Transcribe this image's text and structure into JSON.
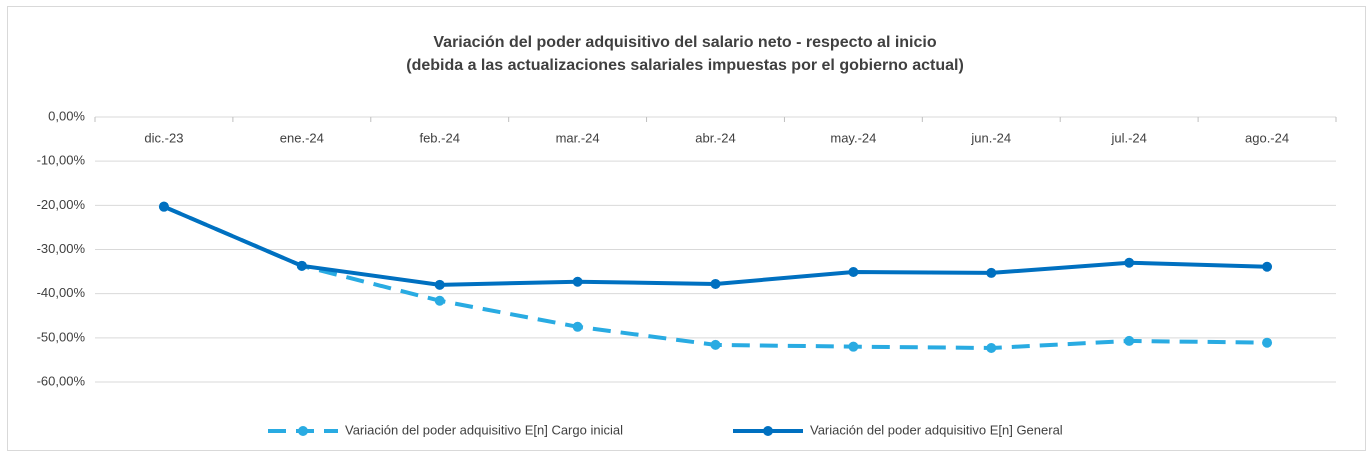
{
  "chart_data": {
    "type": "line",
    "title": "Variación del poder adquisitivo del salario neto - respecto al inicio",
    "subtitle": "(debida a las actualizaciones salariales impuestas por el gobierno actual)",
    "categories": [
      "dic.-23",
      "ene.-24",
      "feb.-24",
      "mar.-24",
      "abr.-24",
      "may.-24",
      "jun.-24",
      "jul.-24",
      "ago.-24"
    ],
    "series": [
      {
        "name": "Variación del poder adquisitivo E[n] Cargo inicial",
        "color": "#29abe2",
        "dashed": true,
        "values": [
          -20.3,
          -33.7,
          -41.6,
          -47.5,
          -51.6,
          -52.0,
          -52.3,
          -50.7,
          -51.1
        ]
      },
      {
        "name": "Variación del poder adquisitivo E[n] General",
        "color": "#0070c0",
        "dashed": false,
        "values": [
          -20.3,
          -33.7,
          -38.0,
          -37.3,
          -37.8,
          -35.1,
          -35.3,
          -33.0,
          -33.9
        ]
      }
    ],
    "ylim": [
      -60,
      0
    ],
    "yticks": [
      {
        "value": 0,
        "label": "0,00%"
      },
      {
        "value": -10,
        "label": "-10,00%"
      },
      {
        "value": -20,
        "label": "-20,00%"
      },
      {
        "value": -30,
        "label": "-30,00%"
      },
      {
        "value": -40,
        "label": "-40,00%"
      },
      {
        "value": -50,
        "label": "-50,00%"
      },
      {
        "value": -60,
        "label": "-60,00%"
      }
    ],
    "grid": true,
    "legend": "bottom"
  }
}
